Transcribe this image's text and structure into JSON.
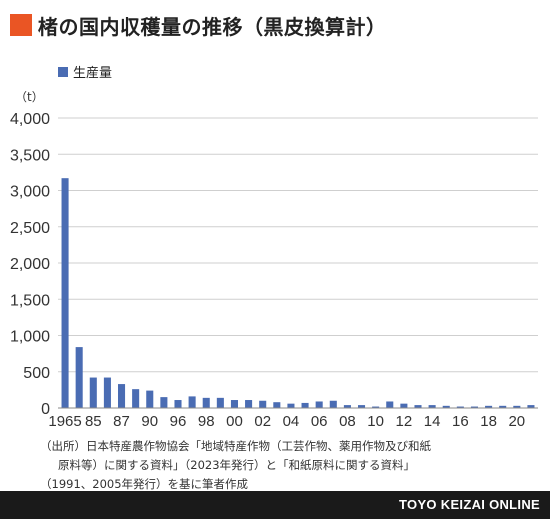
{
  "title": "楮の国内収穫量の推移（黒皮換算計）",
  "unit_label": "（t）",
  "colors": {
    "accent": "#ea5524",
    "bar": "#4a6cb3",
    "footer_bg": "#1a1a1a"
  },
  "chart_data": {
    "type": "bar",
    "title": "楮の国内収穫量の推移（黒皮換算計）",
    "ylabel": "（t）",
    "ylim": [
      0,
      4000
    ],
    "yticks": [
      "0",
      "500",
      "1,000",
      "1,500",
      "2,000",
      "2,500",
      "3,000",
      "3,500",
      "4,000"
    ],
    "grid": true,
    "legend": "top-left",
    "x_tick_labels": [
      "1965",
      "85",
      "87",
      "90",
      "96",
      "98",
      "00",
      "02",
      "04",
      "06",
      "08",
      "10",
      "12",
      "14",
      "16",
      "18",
      "20"
    ],
    "series": [
      {
        "name": "生産量",
        "values": [
          3170,
          840,
          420,
          420,
          330,
          260,
          240,
          150,
          110,
          160,
          140,
          140,
          110,
          110,
          100,
          80,
          60,
          70,
          90,
          100,
          40,
          40,
          20,
          90,
          60,
          40,
          40,
          30,
          20,
          20,
          30,
          30,
          30,
          40
        ]
      }
    ]
  },
  "source": {
    "lines": [
      "（出所）日本特産農作物協会「地域特産作物（工芸作物、薬用作物及び和紙",
      "原料等）に関する資料」（2023年発行）と「和紙原料に関する資料」",
      "（1991、2005年発行）を基に筆者作成"
    ]
  },
  "footer": {
    "brand": "TOYO KEIZAI ONLINE"
  }
}
